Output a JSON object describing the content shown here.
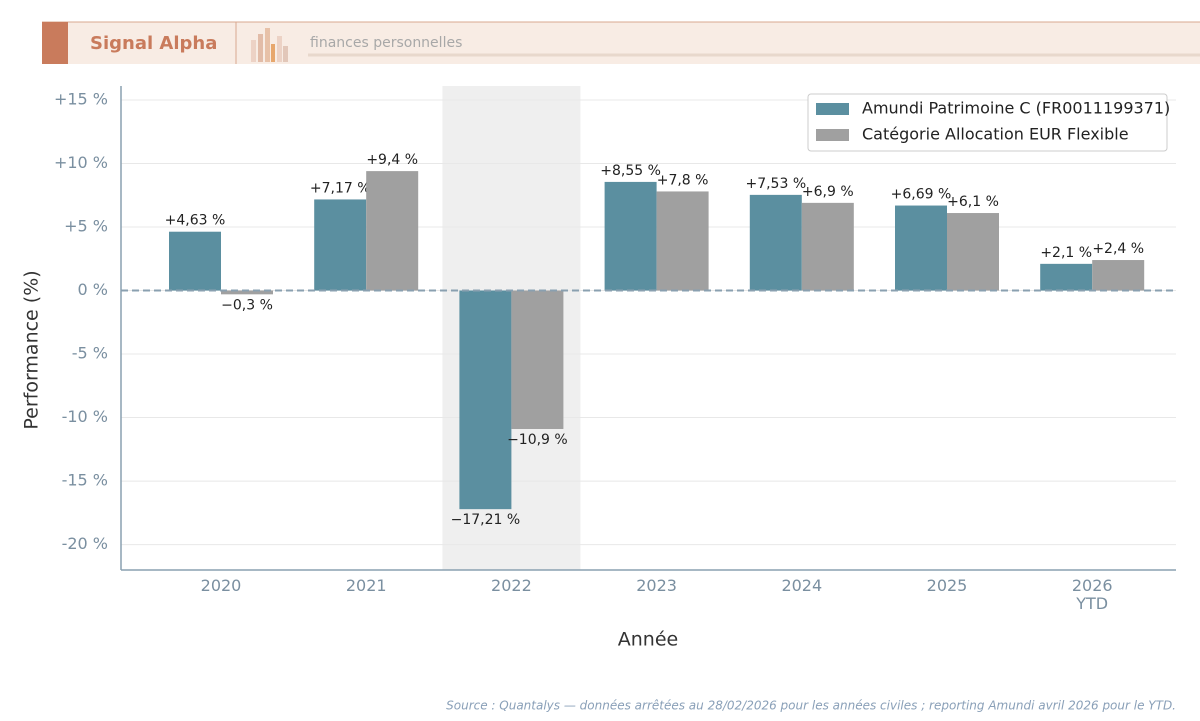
{
  "brand": {
    "name": "Signal Alpha",
    "tagline": "finances personnelles"
  },
  "chart_data": {
    "type": "bar",
    "categories": [
      "2020",
      "2021",
      "2022",
      "2023",
      "2024",
      "2025",
      "2026\nYTD"
    ],
    "series": [
      {
        "name": "Amundi Patrimoine C (FR0011199371)",
        "color": "#5b8fa0",
        "values": [
          4.63,
          7.17,
          -17.21,
          8.55,
          7.53,
          6.69,
          2.1
        ],
        "value_labels": [
          "+4,63 %",
          "+7,17 %",
          "−17,21 %",
          "+8,55 %",
          "+7,53 %",
          "+6,69 %",
          "+2,1 %"
        ]
      },
      {
        "name": "Catégorie Allocation EUR Flexible",
        "color": "#a0a0a0",
        "values": [
          -0.3,
          9.4,
          -10.9,
          7.8,
          6.9,
          6.1,
          2.4
        ],
        "value_labels": [
          "−0,3 %",
          "+9,4 %",
          "−10,9 %",
          "+7,8 %",
          "+6,9 %",
          "+6,1 %",
          "+2,4 %"
        ]
      }
    ],
    "ylim": [
      -22,
      16.1
    ],
    "yticks": [
      {
        "value": 15,
        "label": "+15 %"
      },
      {
        "value": 10,
        "label": "+10 %"
      },
      {
        "value": 5,
        "label": "+5 %"
      },
      {
        "value": 0,
        "label": "0 %"
      },
      {
        "value": -5,
        "label": "-5 %"
      },
      {
        "value": -10,
        "label": "-10 %"
      },
      {
        "value": -15,
        "label": "-15 %"
      },
      {
        "value": -20,
        "label": "-20 %"
      }
    ],
    "x_label": "Année",
    "y_label": "Performance (%)",
    "highlight_index": 2,
    "grid": true,
    "legend": "upper right",
    "source": "Source : Quantalys — données arrêtées au 28/02/2026 pour les années civiles ; reporting Amundi avril 2026 pour le YTD."
  }
}
